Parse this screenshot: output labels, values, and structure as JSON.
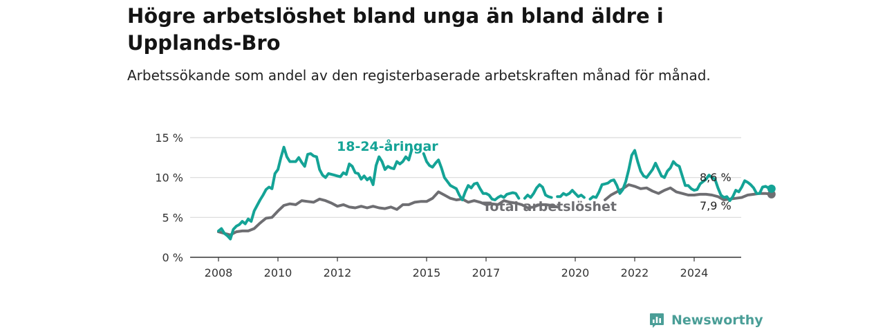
{
  "header": {
    "title": "Högre arbetslöshet bland unga än bland äldre i Upplands-Bro",
    "subtitle": "Arbetssökande som andel av den registerbaserade arbetskraften månad för månad."
  },
  "brand": {
    "name": "Newsworthy"
  },
  "colors": {
    "youth": "#14a396",
    "total": "#6e6e72",
    "grid": "#d9d9d9",
    "axis": "#333333"
  },
  "chart_data": {
    "type": "line",
    "xlim": [
      2007.5,
      2025.8
    ],
    "ylim": [
      0,
      15
    ],
    "x_ticks": [
      {
        "value": 2008,
        "label": "2008"
      },
      {
        "value": 2010,
        "label": "2010"
      },
      {
        "value": 2012,
        "label": "2012"
      },
      {
        "value": 2015,
        "label": "2015"
      },
      {
        "value": 2017,
        "label": "2017"
      },
      {
        "value": 2020,
        "label": "2020"
      },
      {
        "value": 2022,
        "label": "2022"
      },
      {
        "value": 2024,
        "label": "2024"
      }
    ],
    "y_ticks": [
      {
        "value": 0,
        "label": "0 %"
      },
      {
        "value": 5,
        "label": "5 %"
      },
      {
        "value": 10,
        "label": "10 %"
      },
      {
        "value": 15,
        "label": "15 %"
      }
    ],
    "grid": true,
    "series": [
      {
        "name": "18-24-åringar",
        "end_label": "8,6 %",
        "points": [
          [
            2008.0,
            3.3
          ],
          [
            2008.1,
            3.6
          ],
          [
            2008.2,
            3.0
          ],
          [
            2008.3,
            2.7
          ],
          [
            2008.4,
            2.3
          ],
          [
            2008.5,
            3.5
          ],
          [
            2008.6,
            3.9
          ],
          [
            2008.7,
            4.1
          ],
          [
            2008.8,
            4.5
          ],
          [
            2008.9,
            4.2
          ],
          [
            2009.0,
            4.8
          ],
          [
            2009.1,
            4.5
          ],
          [
            2009.2,
            5.8
          ],
          [
            2009.3,
            6.5
          ],
          [
            2009.4,
            7.2
          ],
          [
            2009.5,
            7.8
          ],
          [
            2009.6,
            8.5
          ],
          [
            2009.7,
            8.8
          ],
          [
            2009.8,
            8.6
          ],
          [
            2009.9,
            10.5
          ],
          [
            2010.0,
            11.0
          ],
          [
            2010.1,
            12.5
          ],
          [
            2010.2,
            13.8
          ],
          [
            2010.3,
            12.6
          ],
          [
            2010.4,
            12.0
          ],
          [
            2010.5,
            12.0
          ],
          [
            2010.6,
            12.0
          ],
          [
            2010.7,
            12.5
          ],
          [
            2010.8,
            11.9
          ],
          [
            2010.9,
            11.4
          ],
          [
            2011.0,
            12.9
          ],
          [
            2011.1,
            13.0
          ],
          [
            2011.2,
            12.7
          ],
          [
            2011.3,
            12.6
          ],
          [
            2011.4,
            11.0
          ],
          [
            2011.5,
            10.3
          ],
          [
            2011.6,
            10.0
          ],
          [
            2011.7,
            10.5
          ],
          [
            2011.8,
            10.4
          ],
          [
            2011.9,
            10.3
          ],
          [
            2012.0,
            10.2
          ],
          [
            2012.1,
            10.1
          ],
          [
            2012.2,
            10.6
          ],
          [
            2012.3,
            10.4
          ],
          [
            2012.4,
            11.7
          ],
          [
            2012.5,
            11.4
          ],
          [
            2012.6,
            10.6
          ],
          [
            2012.7,
            10.5
          ],
          [
            2012.8,
            9.8
          ],
          [
            2012.9,
            10.2
          ],
          [
            2013.0,
            9.7
          ],
          [
            2013.1,
            10.0
          ],
          [
            2013.2,
            9.1
          ],
          [
            2013.3,
            11.5
          ],
          [
            2013.4,
            12.6
          ],
          [
            2013.5,
            12.0
          ],
          [
            2013.6,
            11.0
          ],
          [
            2013.7,
            11.4
          ],
          [
            2013.8,
            11.2
          ],
          [
            2013.9,
            11.1
          ],
          [
            2014.0,
            12.0
          ],
          [
            2014.1,
            11.7
          ],
          [
            2014.2,
            12.0
          ],
          [
            2014.3,
            12.6
          ],
          [
            2014.4,
            12.2
          ],
          [
            2014.5,
            13.5
          ],
          null,
          [
            2014.9,
            13.0
          ],
          [
            2015.0,
            12.0
          ],
          [
            2015.1,
            11.5
          ],
          [
            2015.2,
            11.3
          ],
          [
            2015.3,
            11.8
          ],
          [
            2015.4,
            12.2
          ],
          [
            2015.5,
            11.2
          ],
          [
            2015.6,
            10.0
          ],
          [
            2015.7,
            9.5
          ],
          [
            2015.8,
            9.0
          ],
          [
            2015.9,
            8.8
          ],
          [
            2016.0,
            8.6
          ],
          [
            2016.1,
            7.8
          ],
          [
            2016.2,
            7.2
          ],
          [
            2016.3,
            8.2
          ],
          [
            2016.4,
            9.0
          ],
          [
            2016.5,
            8.7
          ],
          [
            2016.6,
            9.2
          ],
          [
            2016.7,
            9.3
          ],
          [
            2016.8,
            8.6
          ],
          [
            2016.9,
            8.0
          ],
          [
            2017.0,
            8.0
          ],
          [
            2017.1,
            7.8
          ],
          [
            2017.2,
            7.3
          ],
          [
            2017.3,
            7.2
          ],
          [
            2017.4,
            7.5
          ],
          [
            2017.5,
            7.7
          ],
          [
            2017.6,
            7.5
          ],
          [
            2017.7,
            7.9
          ],
          [
            2017.8,
            8.0
          ],
          [
            2017.9,
            8.1
          ],
          [
            2018.0,
            8.0
          ],
          [
            2018.1,
            7.4
          ],
          null,
          [
            2018.3,
            7.4
          ],
          [
            2018.4,
            7.8
          ],
          [
            2018.5,
            7.5
          ],
          [
            2018.6,
            8.0
          ],
          [
            2018.7,
            8.7
          ],
          [
            2018.8,
            9.1
          ],
          [
            2018.9,
            8.8
          ],
          [
            2019.0,
            7.8
          ],
          [
            2019.1,
            7.6
          ],
          [
            2019.2,
            7.5
          ],
          null,
          [
            2019.4,
            7.6
          ],
          [
            2019.5,
            7.6
          ],
          [
            2019.6,
            8.0
          ],
          [
            2019.7,
            7.8
          ],
          [
            2019.8,
            8.0
          ],
          [
            2019.9,
            8.4
          ],
          [
            2020.0,
            8.0
          ],
          [
            2020.1,
            7.6
          ],
          [
            2020.2,
            7.8
          ],
          [
            2020.3,
            7.5
          ],
          null,
          [
            2020.5,
            7.3
          ],
          [
            2020.6,
            7.6
          ],
          [
            2020.7,
            7.5
          ],
          [
            2020.8,
            8.2
          ],
          [
            2020.9,
            9.1
          ],
          [
            2021.0,
            9.2
          ],
          [
            2021.1,
            9.3
          ],
          [
            2021.2,
            9.6
          ],
          [
            2021.3,
            9.7
          ],
          [
            2021.4,
            9.0
          ],
          [
            2021.5,
            8.0
          ],
          [
            2021.6,
            8.5
          ],
          [
            2021.7,
            9.5
          ],
          [
            2021.8,
            11.0
          ],
          [
            2021.9,
            12.8
          ],
          [
            2022.0,
            13.4
          ],
          [
            2022.1,
            12.0
          ],
          [
            2022.2,
            10.8
          ],
          [
            2022.3,
            10.2
          ],
          [
            2022.4,
            10.0
          ],
          [
            2022.5,
            10.5
          ],
          [
            2022.6,
            11.0
          ],
          [
            2022.7,
            11.8
          ],
          [
            2022.8,
            11.0
          ],
          [
            2022.9,
            10.2
          ],
          [
            2023.0,
            10.0
          ],
          [
            2023.1,
            10.8
          ],
          [
            2023.2,
            11.2
          ],
          [
            2023.3,
            12.0
          ],
          [
            2023.4,
            11.6
          ],
          [
            2023.5,
            11.4
          ],
          [
            2023.6,
            10.2
          ],
          [
            2023.7,
            9.0
          ],
          [
            2023.8,
            9.0
          ],
          [
            2023.9,
            8.6
          ],
          [
            2024.0,
            8.4
          ],
          [
            2024.1,
            8.5
          ],
          [
            2024.2,
            9.2
          ],
          [
            2024.3,
            9.5
          ],
          [
            2024.4,
            9.8
          ],
          [
            2024.5,
            10.3
          ],
          [
            2024.6,
            10.0
          ],
          [
            2024.7,
            9.8
          ],
          [
            2024.8,
            8.7
          ],
          [
            2024.9,
            7.8
          ],
          [
            2025.0,
            7.5
          ],
          [
            2025.1,
            7.6
          ],
          [
            2025.2,
            7.1
          ],
          [
            2025.3,
            7.6
          ],
          [
            2025.4,
            8.4
          ],
          [
            2025.5,
            8.2
          ],
          [
            2025.6,
            8.8
          ],
          [
            2025.7,
            9.6
          ],
          [
            2025.8,
            9.4
          ],
          [
            2025.9,
            9.1
          ],
          [
            2026.0,
            8.7
          ],
          [
            2026.1,
            8.0
          ],
          [
            2026.2,
            8.0
          ],
          [
            2026.3,
            8.8
          ],
          [
            2026.4,
            8.9
          ],
          [
            2026.5,
            8.7
          ],
          [
            2026.6,
            8.6
          ]
        ]
      },
      {
        "name": "Total arbetslöshet",
        "end_label": "7,9 %",
        "points": [
          [
            2008.0,
            3.2
          ],
          [
            2008.2,
            3.0
          ],
          [
            2008.4,
            2.8
          ],
          [
            2008.5,
            3.0
          ],
          [
            2008.6,
            3.2
          ],
          [
            2008.8,
            3.3
          ],
          [
            2009.0,
            3.3
          ],
          [
            2009.2,
            3.6
          ],
          [
            2009.4,
            4.3
          ],
          [
            2009.6,
            4.9
          ],
          [
            2009.8,
            5.0
          ],
          [
            2010.0,
            5.8
          ],
          [
            2010.2,
            6.5
          ],
          [
            2010.4,
            6.7
          ],
          [
            2010.6,
            6.6
          ],
          [
            2010.8,
            7.1
          ],
          [
            2011.0,
            7.0
          ],
          [
            2011.2,
            6.9
          ],
          [
            2011.4,
            7.3
          ],
          [
            2011.6,
            7.1
          ],
          [
            2011.8,
            6.8
          ],
          [
            2012.0,
            6.4
          ],
          [
            2012.2,
            6.6
          ],
          [
            2012.4,
            6.3
          ],
          [
            2012.6,
            6.2
          ],
          [
            2012.8,
            6.4
          ],
          [
            2013.0,
            6.2
          ],
          [
            2013.2,
            6.4
          ],
          [
            2013.4,
            6.2
          ],
          [
            2013.6,
            6.1
          ],
          [
            2013.8,
            6.3
          ],
          [
            2014.0,
            6.0
          ],
          [
            2014.2,
            6.6
          ],
          [
            2014.4,
            6.6
          ],
          [
            2014.6,
            6.9
          ],
          [
            2014.8,
            7.0
          ],
          [
            2015.0,
            7.0
          ],
          [
            2015.2,
            7.4
          ],
          [
            2015.4,
            8.2
          ],
          [
            2015.6,
            7.8
          ],
          [
            2015.8,
            7.4
          ],
          [
            2016.0,
            7.2
          ],
          [
            2016.2,
            7.3
          ],
          [
            2016.4,
            6.9
          ],
          [
            2016.6,
            7.1
          ],
          [
            2016.8,
            6.9
          ],
          [
            2017.0,
            6.6
          ],
          [
            2017.2,
            6.7
          ],
          [
            2017.4,
            6.6
          ],
          [
            2017.6,
            7.1
          ],
          [
            2017.8,
            6.9
          ],
          [
            2018.0,
            6.8
          ],
          [
            2018.2,
            6.6
          ],
          [
            2018.4,
            6.2
          ],
          [
            2018.6,
            6.3
          ],
          [
            2018.8,
            6.6
          ],
          [
            2019.0,
            6.6
          ],
          [
            2019.2,
            6.5
          ],
          [
            2019.4,
            6.3
          ],
          null,
          [
            2021.0,
            7.2
          ],
          [
            2021.2,
            7.8
          ],
          [
            2021.4,
            8.2
          ],
          [
            2021.6,
            8.6
          ],
          [
            2021.8,
            9.1
          ],
          [
            2022.0,
            8.9
          ],
          [
            2022.2,
            8.6
          ],
          [
            2022.4,
            8.7
          ],
          [
            2022.6,
            8.3
          ],
          [
            2022.8,
            8.0
          ],
          [
            2023.0,
            8.4
          ],
          [
            2023.2,
            8.7
          ],
          [
            2023.4,
            8.2
          ],
          [
            2023.6,
            8.0
          ],
          [
            2023.8,
            7.8
          ],
          [
            2024.0,
            7.8
          ],
          [
            2024.2,
            7.9
          ],
          [
            2024.4,
            7.9
          ],
          [
            2024.6,
            7.8
          ],
          [
            2024.8,
            7.6
          ],
          [
            2025.0,
            7.2
          ],
          [
            2025.2,
            7.3
          ],
          [
            2025.4,
            7.4
          ],
          [
            2025.6,
            7.5
          ],
          [
            2025.8,
            7.8
          ],
          [
            2026.0,
            7.9
          ],
          [
            2026.2,
            8.0
          ],
          [
            2026.4,
            8.0
          ],
          [
            2026.6,
            7.9
          ]
        ]
      }
    ]
  }
}
